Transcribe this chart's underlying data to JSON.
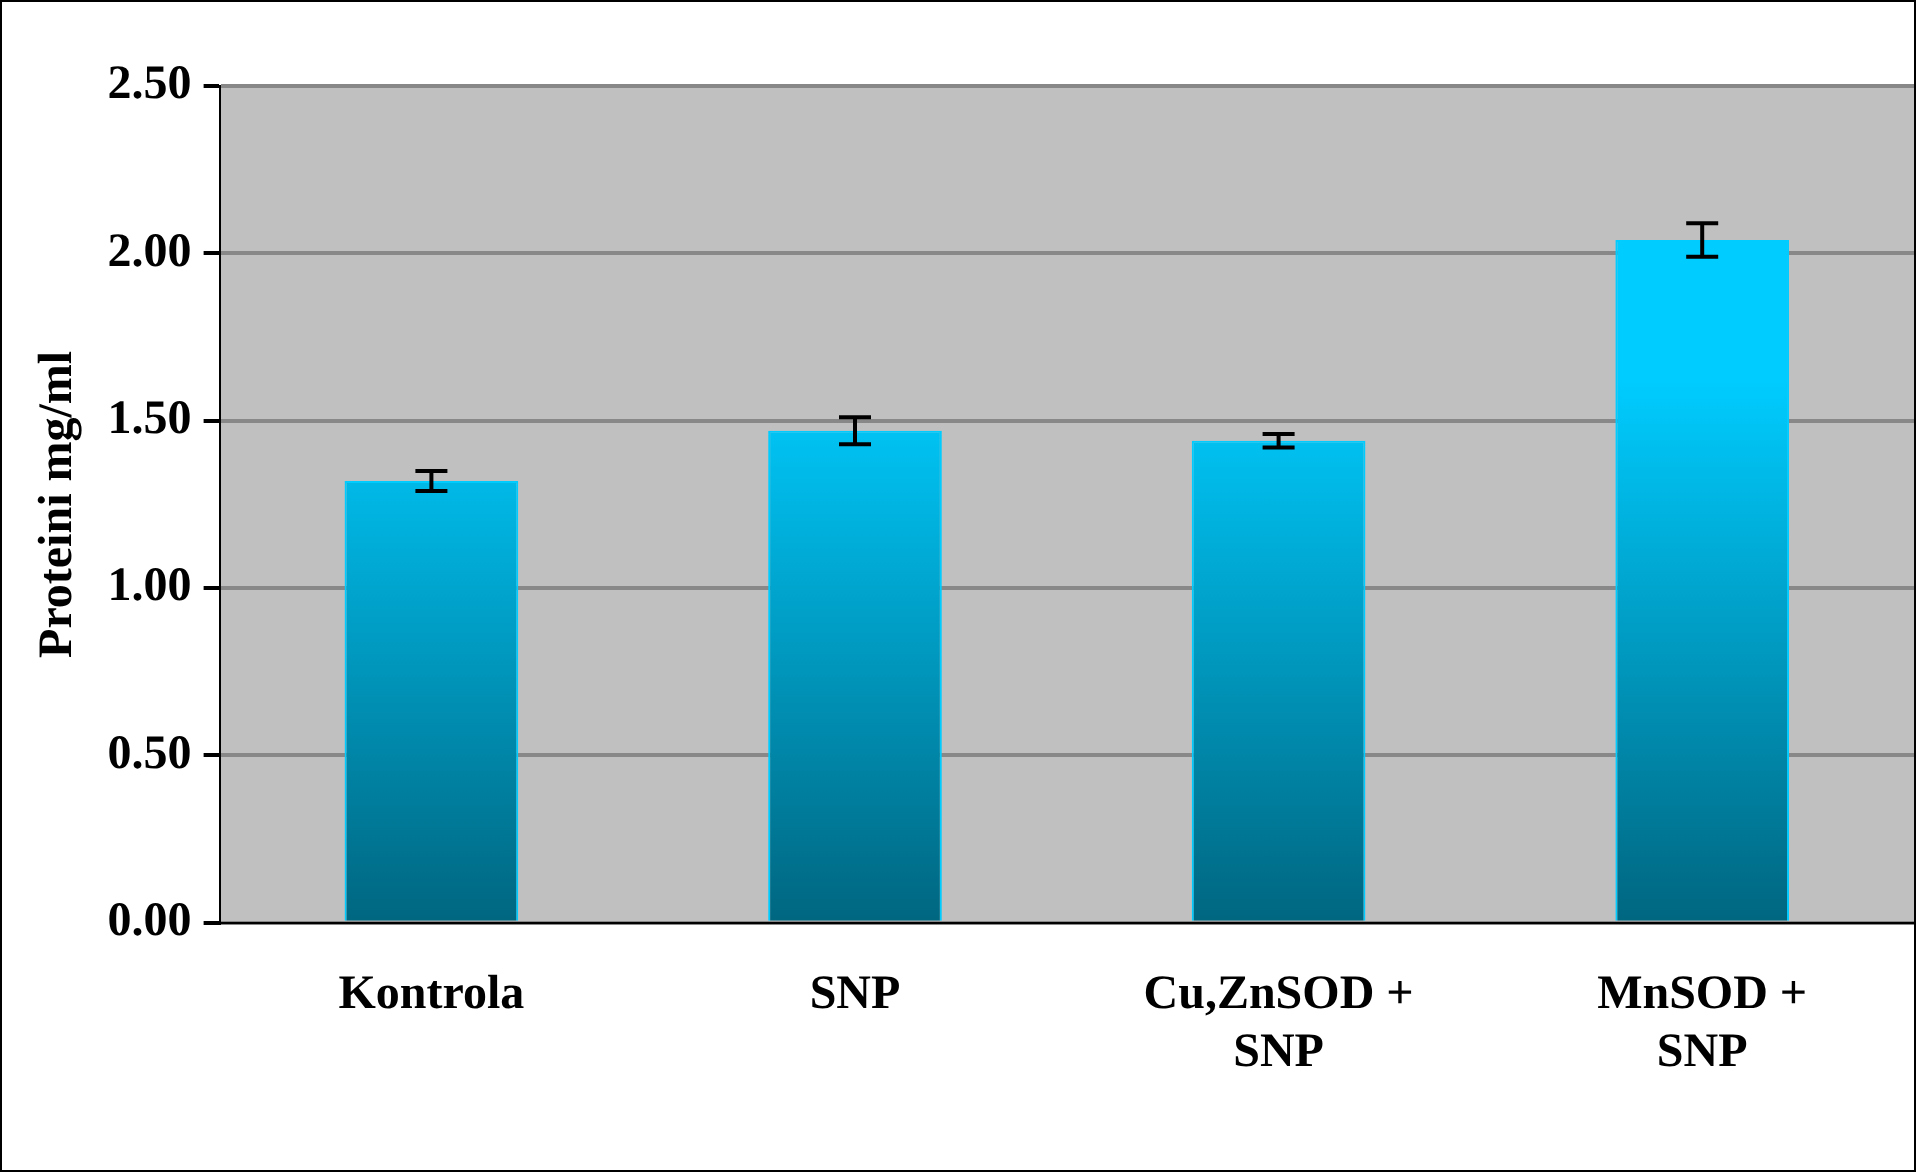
{
  "chart_data": {
    "type": "bar",
    "ylabel": "Proteini mg/ml",
    "categories": [
      "Kontrola",
      "SNP",
      "Cu,ZnSOD + SNP",
      "MnSOD + SNP"
    ],
    "values": [
      1.32,
      1.47,
      1.44,
      2.04
    ],
    "errors": [
      0.03,
      0.04,
      0.02,
      0.05
    ],
    "color": "#00ccff",
    "ylim": [
      0,
      2.5
    ],
    "yticks": [
      {
        "value": 0,
        "label": "0.00"
      },
      {
        "value": 0.5,
        "label": "0.50"
      },
      {
        "value": 1,
        "label": "1.00"
      },
      {
        "value": 1.5,
        "label": "1.50"
      },
      {
        "value": 2,
        "label": "2.00"
      },
      {
        "value": 2.5,
        "label": "2.50"
      }
    ],
    "grid": "y",
    "legend": false
  }
}
